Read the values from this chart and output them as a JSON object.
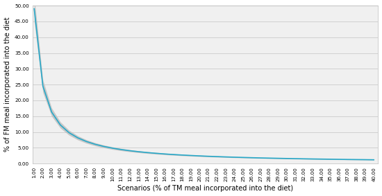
{
  "x_values": [
    1.0,
    2.0,
    3.0,
    4.0,
    5.0,
    6.0,
    7.0,
    8.0,
    9.0,
    10.0,
    11.0,
    12.0,
    13.0,
    14.0,
    15.0,
    16.0,
    17.0,
    18.0,
    19.0,
    20.0,
    21.0,
    22.0,
    23.0,
    24.0,
    25.0,
    26.0,
    27.0,
    28.0,
    29.0,
    30.0,
    31.0,
    32.0,
    33.0,
    34.0,
    35.0,
    36.0,
    37.0,
    38.0,
    39.0,
    40.0
  ],
  "y_center": [
    49.0,
    24.5,
    16.33,
    12.25,
    9.8,
    8.17,
    7.0,
    6.125,
    5.44,
    4.9,
    4.45,
    4.08,
    3.77,
    3.5,
    3.27,
    3.06,
    2.88,
    2.72,
    2.58,
    2.45,
    2.33,
    2.23,
    2.13,
    2.04,
    1.96,
    1.88,
    1.81,
    1.75,
    1.69,
    1.63,
    1.58,
    1.53,
    1.48,
    1.44,
    1.4,
    1.36,
    1.32,
    1.29,
    1.26,
    1.22
  ],
  "shade_factor_upper": 0.08,
  "shade_factor_lower": 0.08,
  "line_color": "#29A8C8",
  "shade_color": "#C0C0C0",
  "plot_bg_color": "#F0F0F0",
  "background_color": "#FFFFFF",
  "ylabel": "% of FM meal incorporated into the diet",
  "xlabel": "Scenarios (% of TM meal incorporated into the diet)",
  "ylim": [
    0.0,
    50.0
  ],
  "yticks": [
    0.0,
    5.0,
    10.0,
    15.0,
    20.0,
    25.0,
    30.0,
    35.0,
    40.0,
    45.0,
    50.0
  ],
  "xtick_labels": [
    "1.00",
    "2.00",
    "3.00",
    "4.00",
    "5.00",
    "6.00",
    "7.00",
    "8.00",
    "9.00",
    "10.00",
    "11.00",
    "12.00",
    "13.00",
    "14.00",
    "15.00",
    "16.00",
    "17.00",
    "18.00",
    "19.00",
    "20.00",
    "21.00",
    "22.00",
    "23.00",
    "24.00",
    "25.00",
    "26.00",
    "27.00",
    "28.00",
    "29.00",
    "30.00",
    "31.00",
    "32.00",
    "33.00",
    "34.00",
    "35.00",
    "36.00",
    "37.00",
    "38.00",
    "39.00",
    "40.00"
  ],
  "grid_color": "#CCCCCC",
  "tick_fontsize": 5.2,
  "label_fontsize": 7.0,
  "line_width": 1.2
}
